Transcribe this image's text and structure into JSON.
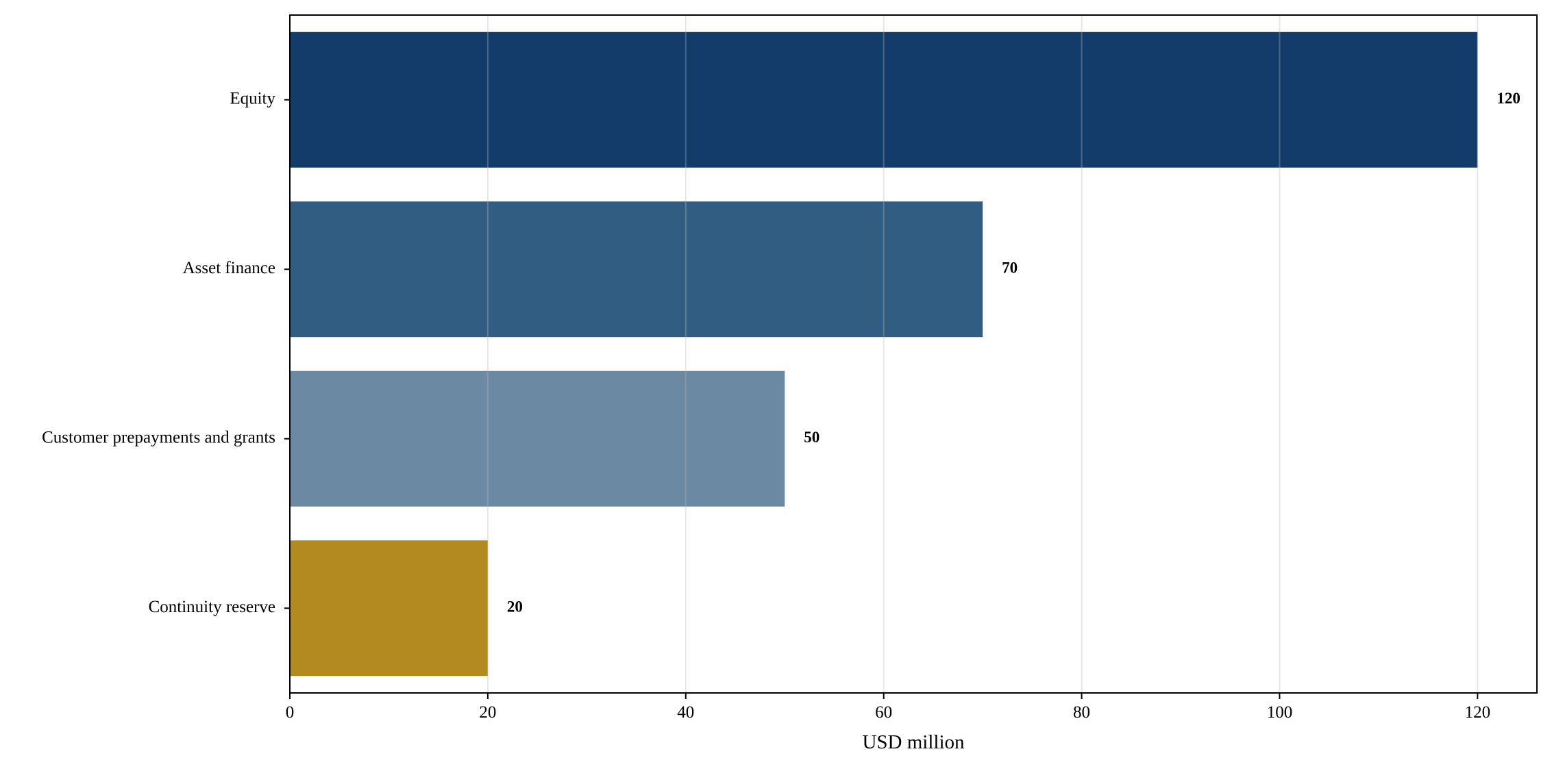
{
  "chart_data": {
    "type": "bar",
    "orientation": "horizontal",
    "categories": [
      "Equity",
      "Asset finance",
      "Customer prepayments and grants",
      "Continuity reserve"
    ],
    "values": [
      120,
      70,
      50,
      20
    ],
    "value_labels": [
      "120",
      "70",
      "50",
      "20"
    ],
    "colors": [
      "#143c6a",
      "#325d83",
      "#6c89a4",
      "#b38a20"
    ],
    "title": "",
    "xlabel": "USD million",
    "ylabel": "",
    "xlim": [
      0,
      126
    ],
    "xticks": [
      0,
      20,
      40,
      60,
      80,
      100,
      120
    ],
    "xtick_labels": [
      "0",
      "20",
      "40",
      "60",
      "80",
      "100",
      "120"
    ],
    "grid": "vertical",
    "legend": "none"
  }
}
